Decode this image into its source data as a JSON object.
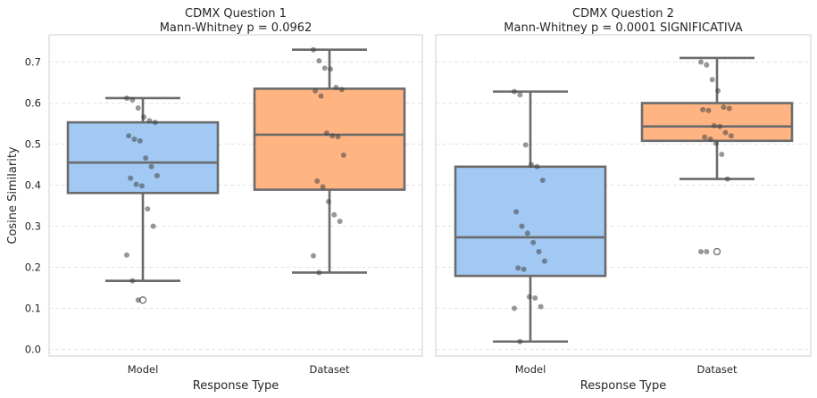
{
  "chart_data": [
    {
      "type": "box",
      "title": "CDMX Question 1",
      "subtitle": "Mann-Whitney p = 0.0962",
      "xlabel": "Response Type",
      "ylabel": "Cosine Similarity",
      "ylim": [
        -0.02,
        0.77
      ],
      "yticks": [
        "0.0",
        "0.1",
        "0.2",
        "0.3",
        "0.4",
        "0.5",
        "0.6",
        "0.7"
      ],
      "grid": "horizontal dashed",
      "categories": [
        "Model",
        "Dataset"
      ],
      "boxes": [
        {
          "name": "Model",
          "color": "#a1c9f4",
          "whislo": 0.167,
          "q1": 0.381,
          "med": 0.455,
          "q3": 0.553,
          "whishi": 0.612,
          "fliers": [
            0.12
          ],
          "points": [
            0.612,
            0.608,
            0.588,
            0.566,
            0.557,
            0.553,
            0.52,
            0.512,
            0.508,
            0.466,
            0.445,
            0.423,
            0.417,
            0.402,
            0.398,
            0.342,
            0.3,
            0.23,
            0.167,
            0.12
          ]
        },
        {
          "name": "Dataset",
          "color": "#ffb482",
          "whislo": 0.187,
          "q1": 0.389,
          "med": 0.523,
          "q3": 0.635,
          "whishi": 0.73,
          "fliers": [],
          "points": [
            0.73,
            0.703,
            0.685,
            0.683,
            0.638,
            0.633,
            0.63,
            0.617,
            0.527,
            0.52,
            0.518,
            0.473,
            0.41,
            0.396,
            0.36,
            0.328,
            0.312,
            0.228,
            0.187
          ]
        }
      ]
    },
    {
      "type": "box",
      "title": "CDMX Question 2",
      "subtitle": "Mann-Whitney p = 0.0001 SIGNIFICATIVA",
      "xlabel": "Response Type",
      "ylabel": "",
      "ylim": [
        -0.02,
        0.77
      ],
      "grid": "horizontal dashed",
      "categories": [
        "Model",
        "Dataset"
      ],
      "boxes": [
        {
          "name": "Model",
          "color": "#a1c9f4",
          "whislo": 0.019,
          "q1": 0.179,
          "med": 0.273,
          "q3": 0.445,
          "whishi": 0.628,
          "fliers": [],
          "points": [
            0.628,
            0.62,
            0.498,
            0.45,
            0.445,
            0.412,
            0.335,
            0.3,
            0.283,
            0.26,
            0.238,
            0.215,
            0.198,
            0.195,
            0.128,
            0.125,
            0.104,
            0.1,
            0.019
          ]
        },
        {
          "name": "Dataset",
          "color": "#ffb482",
          "whislo": 0.415,
          "q1": 0.508,
          "med": 0.543,
          "q3": 0.6,
          "whishi": 0.71,
          "fliers": [
            0.238
          ],
          "points": [
            0.7,
            0.693,
            0.657,
            0.63,
            0.59,
            0.587,
            0.584,
            0.582,
            0.545,
            0.543,
            0.528,
            0.52,
            0.517,
            0.512,
            0.502,
            0.475,
            0.415,
            0.238,
            0.238
          ]
        }
      ]
    }
  ]
}
